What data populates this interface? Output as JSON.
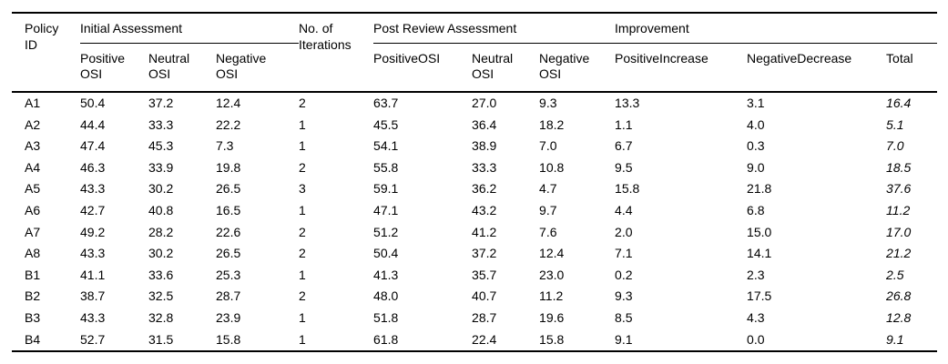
{
  "table": {
    "header": {
      "col_policy_id": "Policy ID",
      "col_iterations": "No. of Iterations",
      "group_initial": "Initial Assessment",
      "group_post_review": "Post Review Assessment",
      "group_improvement": "Improvement",
      "subcolumns": [
        "Positive OSI",
        "Neutral OSI",
        "Negative OSI",
        "PositiveOSI",
        "Neutral OSI",
        "Negative OSI",
        "PositiveIncrease",
        "NegativeDecrease",
        "Total"
      ]
    },
    "rows": [
      {
        "cells": [
          "A1",
          "50.4",
          "37.2",
          "12.4",
          "2",
          "63.7",
          "27.0",
          "9.3",
          "13.3",
          "3.1",
          "16.4"
        ]
      },
      {
        "cells": [
          "A2",
          "44.4",
          "33.3",
          "22.2",
          "1",
          "45.5",
          "36.4",
          "18.2",
          "1.1",
          "4.0",
          "5.1"
        ]
      },
      {
        "cells": [
          "A3",
          "47.4",
          "45.3",
          "7.3",
          "1",
          "54.1",
          "38.9",
          "7.0",
          "6.7",
          "0.3",
          "7.0"
        ]
      },
      {
        "cells": [
          "A4",
          "46.3",
          "33.9",
          "19.8",
          "2",
          "55.8",
          "33.3",
          "10.8",
          "9.5",
          "9.0",
          "18.5"
        ]
      },
      {
        "cells": [
          "A5",
          "43.3",
          "30.2",
          "26.5",
          "3",
          "59.1",
          "36.2",
          "4.7",
          "15.8",
          "21.8",
          "37.6"
        ]
      },
      {
        "cells": [
          "A6",
          "42.7",
          "40.8",
          "16.5",
          "1",
          "47.1",
          "43.2",
          "9.7",
          "4.4",
          "6.8",
          "11.2"
        ]
      },
      {
        "cells": [
          "A7",
          "49.2",
          "28.2",
          "22.6",
          "2",
          "51.2",
          "41.2",
          "7.6",
          "2.0",
          "15.0",
          "17.0"
        ]
      },
      {
        "cells": [
          "A8",
          "43.3",
          "30.2",
          "26.5",
          "2",
          "50.4",
          "37.2",
          "12.4",
          "7.1",
          "14.1",
          "21.2"
        ]
      },
      {
        "cells": [
          "B1",
          "41.1",
          "33.6",
          "25.3",
          "1",
          "41.3",
          "35.7",
          "23.0",
          "0.2",
          "2.3",
          "2.5"
        ]
      },
      {
        "cells": [
          "B2",
          "38.7",
          "32.5",
          "28.7",
          "2",
          "48.0",
          "40.7",
          "11.2",
          "9.3",
          "17.5",
          "26.8"
        ]
      },
      {
        "cells": [
          "B3",
          "43.3",
          "32.8",
          "23.9",
          "1",
          "51.8",
          "28.7",
          "19.6",
          "8.5",
          "4.3",
          "12.8"
        ]
      },
      {
        "cells": [
          "B4",
          "52.7",
          "31.5",
          "15.8",
          "1",
          "61.8",
          "22.4",
          "15.8",
          "9.1",
          "0.0",
          "9.1"
        ]
      }
    ]
  },
  "colors": {
    "text": "#000000",
    "rule": "#000000",
    "background": "#ffffff"
  }
}
